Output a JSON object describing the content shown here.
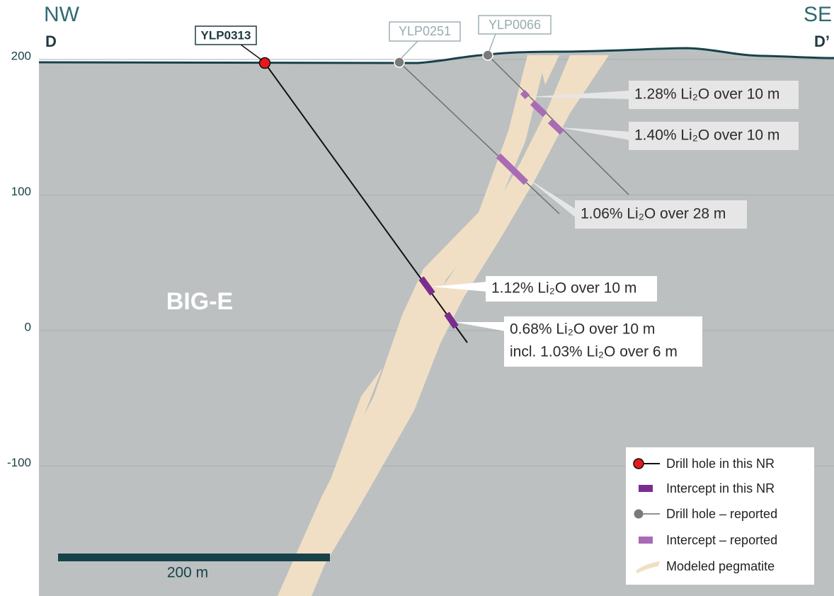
{
  "header": {
    "left_direction": "NW",
    "left_section": "D",
    "right_direction": "SE",
    "right_section": "D’"
  },
  "elevation_axis": {
    "ticks": [
      200,
      100,
      0,
      -100
    ]
  },
  "drill_holes": [
    {
      "label": "YLP0313"
    },
    {
      "label": "YLP0251"
    },
    {
      "label": "YLP0066"
    }
  ],
  "region_label": "BIG-E",
  "callouts": [
    {
      "lines": [
        "1.28% Li₂O over 10 m"
      ]
    },
    {
      "lines": [
        "1.40% Li₂O over 10 m"
      ]
    },
    {
      "lines": [
        "1.06% Li₂O over 28 m"
      ]
    },
    {
      "lines": [
        "1.12% Li₂O over 10 m"
      ]
    },
    {
      "lines": [
        "0.68% Li₂O over 10 m",
        "incl. 1.03% Li₂O over 6 m"
      ]
    }
  ],
  "scale_bar": {
    "label": "200 m"
  },
  "legend": [
    "Drill hole in this NR",
    "Intercept in this NR",
    "Drill hole – reported",
    "Intercept – reported",
    "Modeled pegmatite"
  ]
}
